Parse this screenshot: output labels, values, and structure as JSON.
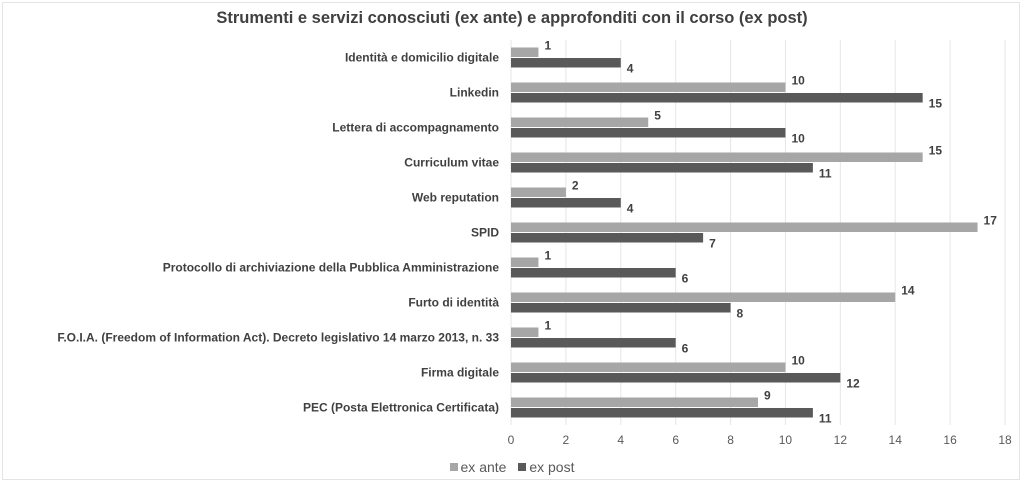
{
  "chart_data": {
    "type": "bar",
    "orientation": "horizontal",
    "title": "Strumenti e servizi conosciuti (ex ante) e approfonditi con il corso (ex post)",
    "categories": [
      "Identità e domicilio digitale",
      "Linkedin",
      "Lettera di accompagnamento",
      "Curriculum vitae",
      "Web reputation",
      "SPID",
      "Protocollo di archiviazione della Pubblica Amministrazione",
      "Furto di identità",
      "F.O.I.A. (Freedom of Information Act). Decreto legislativo 14 marzo 2013, n. 33",
      "Firma digitale",
      "PEC (Posta Elettronica Certificata)"
    ],
    "series": [
      {
        "name": "ex ante",
        "color": "#a6a6a6",
        "values": [
          1,
          10,
          5,
          15,
          2,
          17,
          1,
          14,
          1,
          10,
          9
        ]
      },
      {
        "name": "ex post",
        "color": "#595959",
        "values": [
          4,
          15,
          10,
          11,
          4,
          7,
          6,
          8,
          6,
          12,
          11
        ]
      }
    ],
    "xlim": [
      0,
      18
    ],
    "xticks": [
      "0",
      "2",
      "4",
      "6",
      "8",
      "10",
      "12",
      "14",
      "16",
      "18"
    ],
    "grid": true,
    "legend_position": "bottom",
    "xlabel": "",
    "ylabel": ""
  }
}
